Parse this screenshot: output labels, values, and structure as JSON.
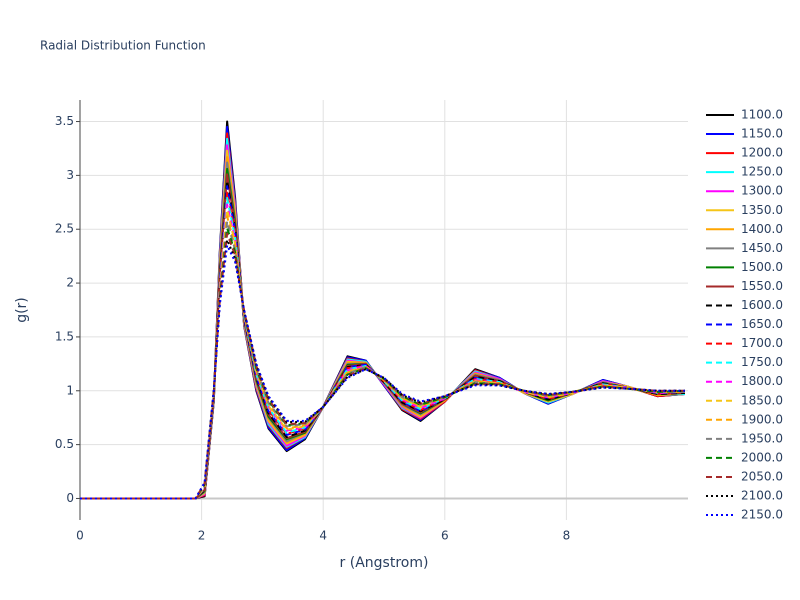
{
  "chart_data": {
    "type": "line",
    "title": "Radial Distribution Function",
    "x_label": "r (Angstrom)",
    "y_label": "g(r)",
    "xlim": [
      0,
      10
    ],
    "ylim": [
      -0.2,
      3.7
    ],
    "xticks": [
      0,
      2,
      4,
      6,
      8
    ],
    "yticks": [
      0,
      0.5,
      1,
      1.5,
      2,
      2.5,
      3,
      3.5
    ],
    "grid": true,
    "x": [
      0,
      1.9,
      2.05,
      2.2,
      2.3,
      2.42,
      2.55,
      2.7,
      2.9,
      3.1,
      3.4,
      3.7,
      4.0,
      4.4,
      4.7,
      5.0,
      5.3,
      5.6,
      6.0,
      6.5,
      6.9,
      7.3,
      7.7,
      8.1,
      8.6,
      9.0,
      9.5,
      9.95
    ],
    "series": [
      {
        "name": "1100.0",
        "color": "#000000",
        "dash": "solid",
        "values": [
          0,
          0,
          0.02,
          0.9,
          2.3,
          3.5,
          2.8,
          1.6,
          1.0,
          0.65,
          0.44,
          0.55,
          0.85,
          1.32,
          1.28,
          1.05,
          0.82,
          0.72,
          0.9,
          1.2,
          1.12,
          0.98,
          0.88,
          0.97,
          1.1,
          1.04,
          0.95,
          0.97
        ]
      },
      {
        "name": "1150.0",
        "color": "#0000ff",
        "dash": "solid",
        "values": [
          0,
          0,
          0.03,
          0.9,
          2.28,
          3.45,
          2.77,
          1.61,
          1.01,
          0.66,
          0.45,
          0.56,
          0.85,
          1.31,
          1.28,
          1.05,
          0.83,
          0.73,
          0.9,
          1.19,
          1.12,
          0.98,
          0.88,
          0.97,
          1.1,
          1.04,
          0.95,
          0.97
        ]
      },
      {
        "name": "1200.0",
        "color": "#ff0000",
        "dash": "solid",
        "values": [
          0,
          0,
          0.03,
          0.91,
          2.25,
          3.39,
          2.74,
          1.61,
          1.02,
          0.68,
          0.47,
          0.57,
          0.85,
          1.3,
          1.27,
          1.06,
          0.83,
          0.74,
          0.9,
          1.19,
          1.11,
          0.98,
          0.89,
          0.97,
          1.09,
          1.04,
          0.95,
          0.97
        ]
      },
      {
        "name": "1250.0",
        "color": "#00ffff",
        "dash": "solid",
        "values": [
          0,
          0,
          0.04,
          0.91,
          2.23,
          3.34,
          2.71,
          1.62,
          1.04,
          0.69,
          0.48,
          0.57,
          0.85,
          1.29,
          1.27,
          1.06,
          0.84,
          0.75,
          0.91,
          1.18,
          1.11,
          0.98,
          0.89,
          0.97,
          1.09,
          1.04,
          0.96,
          0.97
        ]
      },
      {
        "name": "1300.0",
        "color": "#ff00ff",
        "dash": "solid",
        "values": [
          0,
          0,
          0.04,
          0.92,
          2.2,
          3.28,
          2.69,
          1.63,
          1.05,
          0.71,
          0.49,
          0.58,
          0.85,
          1.28,
          1.26,
          1.06,
          0.85,
          0.75,
          0.91,
          1.17,
          1.11,
          0.98,
          0.9,
          0.97,
          1.09,
          1.04,
          0.96,
          0.98
        ]
      },
      {
        "name": "1350.0",
        "color": "#f5c518",
        "dash": "solid",
        "values": [
          0,
          0,
          0.05,
          0.92,
          2.18,
          3.23,
          2.66,
          1.64,
          1.06,
          0.72,
          0.51,
          0.59,
          0.85,
          1.27,
          1.26,
          1.07,
          0.86,
          0.76,
          0.91,
          1.16,
          1.1,
          0.98,
          0.9,
          0.97,
          1.08,
          1.04,
          0.96,
          0.98
        ]
      },
      {
        "name": "1400.0",
        "color": "#ffa500",
        "dash": "solid",
        "values": [
          0,
          0,
          0.06,
          0.93,
          2.16,
          3.17,
          2.63,
          1.64,
          1.07,
          0.74,
          0.52,
          0.6,
          0.85,
          1.26,
          1.26,
          1.07,
          0.86,
          0.77,
          0.91,
          1.16,
          1.1,
          0.99,
          0.91,
          0.98,
          1.08,
          1.03,
          0.96,
          0.98
        ]
      },
      {
        "name": "1450.0",
        "color": "#808080",
        "dash": "solid",
        "values": [
          0,
          0,
          0.06,
          0.93,
          2.13,
          3.12,
          2.6,
          1.65,
          1.08,
          0.75,
          0.53,
          0.61,
          0.85,
          1.25,
          1.25,
          1.07,
          0.87,
          0.78,
          0.92,
          1.15,
          1.1,
          0.99,
          0.91,
          0.98,
          1.08,
          1.03,
          0.97,
          0.98
        ]
      },
      {
        "name": "1500.0",
        "color": "#008000",
        "dash": "solid",
        "values": [
          0,
          0,
          0.07,
          0.94,
          2.11,
          3.06,
          2.57,
          1.66,
          1.1,
          0.76,
          0.55,
          0.61,
          0.85,
          1.24,
          1.25,
          1.08,
          0.88,
          0.79,
          0.92,
          1.14,
          1.09,
          0.99,
          0.91,
          0.98,
          1.07,
          1.03,
          0.97,
          0.98
        ]
      },
      {
        "name": "1550.0",
        "color": "#a52a2a",
        "dash": "solid",
        "values": [
          0,
          0,
          0.08,
          0.94,
          2.09,
          3.01,
          2.54,
          1.66,
          1.11,
          0.78,
          0.56,
          0.62,
          0.85,
          1.23,
          1.25,
          1.08,
          0.88,
          0.8,
          0.92,
          1.14,
          1.09,
          0.99,
          0.92,
          0.98,
          1.07,
          1.03,
          0.97,
          0.98
        ]
      },
      {
        "name": "1600.0",
        "color": "#000000",
        "dash": "dash",
        "values": [
          0,
          0,
          0.08,
          0.95,
          2.06,
          2.95,
          2.51,
          1.67,
          1.12,
          0.79,
          0.57,
          0.63,
          0.85,
          1.22,
          1.24,
          1.08,
          0.89,
          0.81,
          0.92,
          1.13,
          1.09,
          0.99,
          0.92,
          0.98,
          1.07,
          1.03,
          0.97,
          0.98
        ]
      },
      {
        "name": "1650.0",
        "color": "#0000ff",
        "dash": "dash",
        "values": [
          0,
          0,
          0.09,
          0.95,
          2.04,
          2.9,
          2.49,
          1.68,
          1.13,
          0.81,
          0.59,
          0.64,
          0.85,
          1.22,
          1.24,
          1.09,
          0.9,
          0.81,
          0.93,
          1.12,
          1.08,
          0.99,
          0.93,
          0.98,
          1.06,
          1.03,
          0.98,
          0.99
        ]
      },
      {
        "name": "1700.0",
        "color": "#ff0000",
        "dash": "dash",
        "values": [
          0,
          0,
          0.09,
          0.96,
          2.01,
          2.84,
          2.46,
          1.69,
          1.14,
          0.82,
          0.6,
          0.65,
          0.85,
          1.21,
          1.23,
          1.09,
          0.91,
          0.82,
          0.93,
          1.11,
          1.08,
          0.99,
          0.93,
          0.98,
          1.06,
          1.03,
          0.98,
          0.99
        ]
      },
      {
        "name": "1750.0",
        "color": "#00ffff",
        "dash": "dash",
        "values": [
          0,
          0,
          0.1,
          0.96,
          1.99,
          2.79,
          2.43,
          1.69,
          1.15,
          0.84,
          0.61,
          0.66,
          0.85,
          1.2,
          1.23,
          1.09,
          0.91,
          0.83,
          0.93,
          1.11,
          1.08,
          0.99,
          0.94,
          0.98,
          1.06,
          1.03,
          0.98,
          0.99
        ]
      },
      {
        "name": "1800.0",
        "color": "#ff00ff",
        "dash": "dash",
        "values": [
          0,
          0,
          0.11,
          0.97,
          1.97,
          2.73,
          2.4,
          1.7,
          1.17,
          0.85,
          0.63,
          0.66,
          0.85,
          1.19,
          1.23,
          1.1,
          0.92,
          0.84,
          0.93,
          1.1,
          1.07,
          0.99,
          0.94,
          0.98,
          1.05,
          1.03,
          0.98,
          0.99
        ]
      },
      {
        "name": "1850.0",
        "color": "#f5c518",
        "dash": "dash",
        "values": [
          0,
          0,
          0.11,
          0.97,
          1.94,
          2.68,
          2.37,
          1.71,
          1.18,
          0.86,
          0.64,
          0.67,
          0.85,
          1.18,
          1.22,
          1.1,
          0.93,
          0.85,
          0.94,
          1.09,
          1.07,
          0.99,
          0.94,
          0.98,
          1.05,
          1.03,
          0.99,
          0.99
        ]
      },
      {
        "name": "1900.0",
        "color": "#ffa500",
        "dash": "dash",
        "values": [
          0,
          0,
          0.12,
          0.98,
          1.92,
          2.62,
          2.34,
          1.71,
          1.19,
          0.88,
          0.65,
          0.68,
          0.85,
          1.17,
          1.22,
          1.1,
          0.93,
          0.86,
          0.94,
          1.09,
          1.07,
          1.0,
          0.95,
          0.99,
          1.05,
          1.02,
          0.99,
          0.99
        ]
      },
      {
        "name": "1950.0",
        "color": "#808080",
        "dash": "dash",
        "values": [
          0,
          0,
          0.13,
          0.98,
          1.9,
          2.57,
          2.31,
          1.72,
          1.2,
          0.89,
          0.67,
          0.69,
          0.85,
          1.16,
          1.22,
          1.11,
          0.94,
          0.87,
          0.94,
          1.08,
          1.06,
          1.0,
          0.95,
          0.99,
          1.04,
          1.02,
          0.99,
          0.99
        ]
      },
      {
        "name": "2000.0",
        "color": "#008000",
        "dash": "dash",
        "values": [
          0,
          0,
          0.13,
          0.99,
          1.87,
          2.51,
          2.29,
          1.73,
          1.21,
          0.91,
          0.68,
          0.7,
          0.85,
          1.15,
          1.21,
          1.11,
          0.95,
          0.87,
          0.94,
          1.07,
          1.06,
          1.0,
          0.96,
          0.99,
          1.04,
          1.02,
          0.99,
          1.0
        ]
      },
      {
        "name": "2050.0",
        "color": "#a52a2a",
        "dash": "dash",
        "values": [
          0,
          0,
          0.14,
          0.99,
          1.85,
          2.46,
          2.26,
          1.74,
          1.23,
          0.92,
          0.69,
          0.7,
          0.85,
          1.14,
          1.21,
          1.11,
          0.96,
          0.88,
          0.95,
          1.06,
          1.06,
          1.0,
          0.96,
          0.99,
          1.04,
          1.02,
          1.0,
          1.0
        ]
      },
      {
        "name": "2100.0",
        "color": "#000000",
        "dash": "dot",
        "values": [
          0,
          0,
          0.14,
          1.0,
          1.82,
          2.4,
          2.23,
          1.74,
          1.24,
          0.94,
          0.71,
          0.71,
          0.85,
          1.13,
          1.2,
          1.12,
          0.96,
          0.89,
          0.95,
          1.06,
          1.05,
          1.0,
          0.97,
          0.99,
          1.03,
          1.02,
          1.0,
          1.0
        ]
      },
      {
        "name": "2150.0",
        "color": "#0000ff",
        "dash": "dot",
        "values": [
          0,
          0,
          0.15,
          1.0,
          1.8,
          2.35,
          2.2,
          1.75,
          1.25,
          0.95,
          0.72,
          0.72,
          0.85,
          1.12,
          1.2,
          1.12,
          0.97,
          0.9,
          0.95,
          1.05,
          1.05,
          1.0,
          0.97,
          0.99,
          1.03,
          1.02,
          1.0,
          1.0
        ]
      }
    ]
  }
}
